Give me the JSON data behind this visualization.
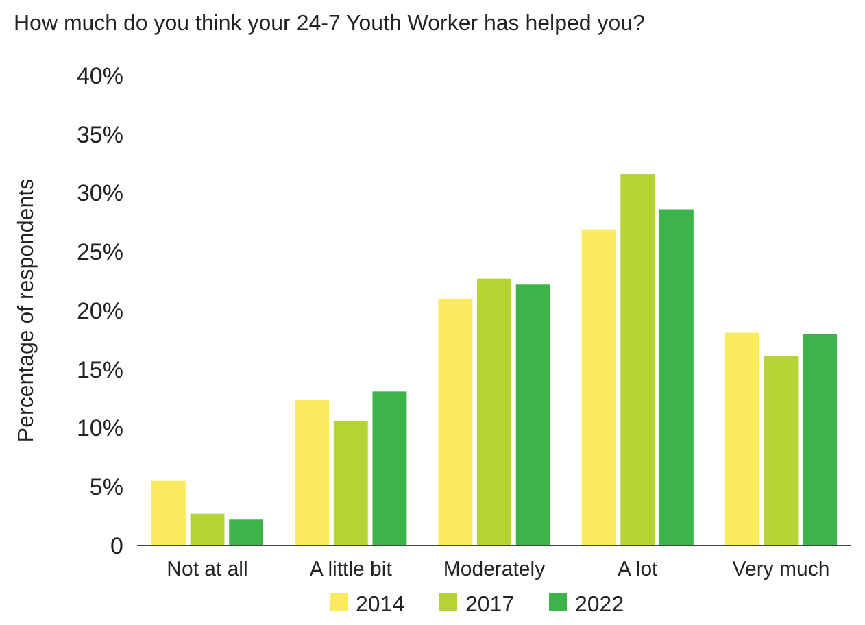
{
  "chart_data": {
    "type": "bar",
    "title": "How much do you think your 24-7 Youth Worker has helped you?",
    "ylabel": "Percentage of respondents",
    "categories": [
      "Not at all",
      "A little bit",
      "Moderately",
      "A lot",
      "Very much"
    ],
    "series": [
      {
        "name": "2014",
        "color": "#fbe95e",
        "values": [
          5.5,
          12.4,
          21.0,
          26.9,
          18.1
        ]
      },
      {
        "name": "2017",
        "color": "#b5d334",
        "values": [
          2.7,
          10.6,
          22.7,
          31.6,
          16.1
        ]
      },
      {
        "name": "2022",
        "color": "#3cb44a",
        "values": [
          2.2,
          13.1,
          22.2,
          28.6,
          18.0
        ]
      }
    ],
    "ylim": [
      0,
      40
    ],
    "yticks": [
      {
        "value": 0,
        "label": "0"
      },
      {
        "value": 5,
        "label": "5%"
      },
      {
        "value": 10,
        "label": "10%"
      },
      {
        "value": 15,
        "label": "15%"
      },
      {
        "value": 20,
        "label": "20%"
      },
      {
        "value": 25,
        "label": "25%"
      },
      {
        "value": 30,
        "label": "30%"
      },
      {
        "value": 35,
        "label": "35%"
      },
      {
        "value": 40,
        "label": "40%"
      }
    ],
    "grid": false,
    "legend": "bottom"
  }
}
